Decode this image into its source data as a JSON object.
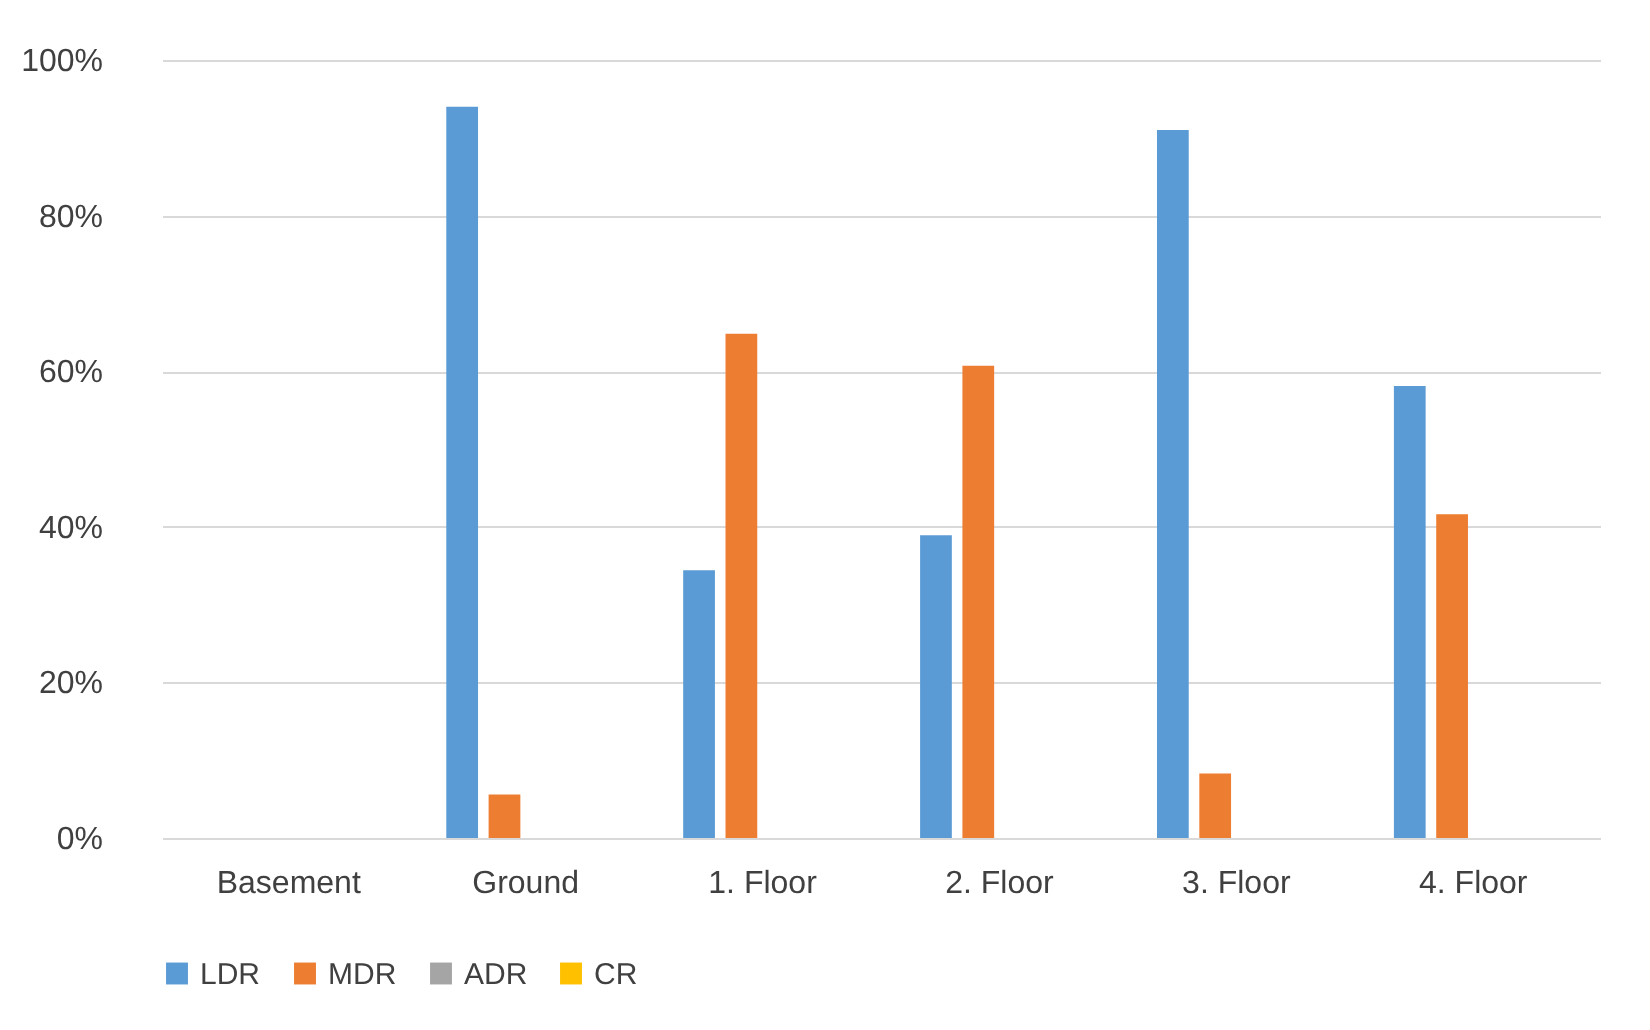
{
  "chart_data": {
    "type": "bar",
    "categories": [
      "Basement",
      "Ground",
      "1. Floor",
      "2. Floor",
      "3. Floor",
      "4. Floor"
    ],
    "series": [
      {
        "name": "LDR",
        "color": "#5b9bd5",
        "values": [
          0,
          94,
          34.4,
          38.9,
          91,
          58.1
        ]
      },
      {
        "name": "MDR",
        "color": "#ed7d31",
        "values": [
          0,
          5.6,
          64.8,
          60.7,
          8.3,
          41.6
        ]
      },
      {
        "name": "ADR",
        "color": "#a5a5a5",
        "values": [
          0,
          0,
          0,
          0,
          0,
          0
        ]
      },
      {
        "name": "CR",
        "color": "#ffc000",
        "values": [
          0,
          0,
          0,
          0,
          0,
          0
        ]
      }
    ],
    "ylim": [
      0,
      100
    ],
    "yticks": [
      {
        "value": 0,
        "label": "0%"
      },
      {
        "value": 20,
        "label": "20%"
      },
      {
        "value": 40,
        "label": "40%"
      },
      {
        "value": 60,
        "label": "60%"
      },
      {
        "value": 80,
        "label": "80%"
      },
      {
        "value": 100,
        "label": "100%"
      }
    ],
    "grid": "y",
    "legend": "bottom"
  }
}
